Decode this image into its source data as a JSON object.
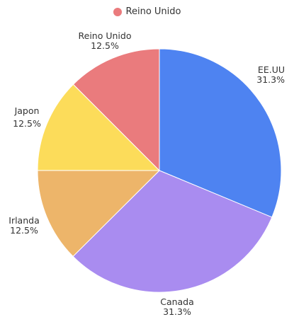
{
  "chart_data": {
    "type": "pie",
    "legend": {
      "placement": "top",
      "items": [
        {
          "name": "Reino Unido",
          "color": "#ea7b7d"
        }
      ]
    },
    "slices": [
      {
        "label": "EE.UU",
        "value": 31.3,
        "display": "31.3%",
        "color": "#4e83f1"
      },
      {
        "label": "Canada",
        "value": 31.3,
        "display": "31.3%",
        "color": "#a98cf0"
      },
      {
        "label": "Irlanda",
        "value": 12.5,
        "display": "12.5%",
        "color": "#edb56a"
      },
      {
        "label": "Japon",
        "value": 12.5,
        "display": "12.5%",
        "color": "#fcdc5a"
      },
      {
        "label": "Reino Unido",
        "value": 12.5,
        "display": "12.5%",
        "color": "#ea7b7d"
      }
    ]
  }
}
